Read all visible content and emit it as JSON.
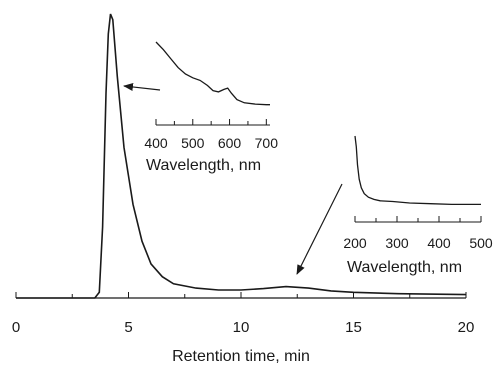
{
  "chart_data": [
    {
      "type": "line",
      "title": "",
      "xlabel": "Retention time, min",
      "ylabel": "",
      "xlim": [
        0,
        20
      ],
      "x_ticks": [
        "0",
        "5",
        "10",
        "15",
        "20"
      ],
      "x_minor_step": 2.5,
      "grid": false,
      "series": [
        {
          "points": [
            [
              0,
              0
            ],
            [
              3.5,
              0
            ],
            [
              3.7,
              0.02
            ],
            [
              3.85,
              0.25
            ],
            [
              4.0,
              0.72
            ],
            [
              4.1,
              0.93
            ],
            [
              4.2,
              1.0
            ],
            [
              4.3,
              0.98
            ],
            [
              4.5,
              0.78
            ],
            [
              4.8,
              0.53
            ],
            [
              5.2,
              0.33
            ],
            [
              5.6,
              0.2
            ],
            [
              6.0,
              0.12
            ],
            [
              6.5,
              0.075
            ],
            [
              7.0,
              0.05
            ],
            [
              8.0,
              0.035
            ],
            [
              9.0,
              0.028
            ],
            [
              10.0,
              0.028
            ],
            [
              11.0,
              0.033
            ],
            [
              12.0,
              0.04
            ],
            [
              13.0,
              0.035
            ],
            [
              14.0,
              0.025
            ],
            [
              15.0,
              0.02
            ],
            [
              17.0,
              0.015
            ],
            [
              20.0,
              0.012
            ]
          ]
        }
      ],
      "annotations": [
        {
          "text": "arrow from inset 1 to peak at ~4.2 min"
        },
        {
          "text": "arrow from inset 2 to broad peak at ~12 min"
        }
      ]
    },
    {
      "type": "line",
      "title": "",
      "xlabel": "Wavelength, nm",
      "xlim": [
        400,
        710
      ],
      "x_ticks": [
        "400",
        "500",
        "600",
        "700"
      ],
      "series": [
        {
          "points": [
            [
              400,
              1.0
            ],
            [
              420,
              0.88
            ],
            [
              440,
              0.74
            ],
            [
              460,
              0.6
            ],
            [
              480,
              0.5
            ],
            [
              500,
              0.44
            ],
            [
              520,
              0.4
            ],
            [
              540,
              0.32
            ],
            [
              555,
              0.24
            ],
            [
              570,
              0.22
            ],
            [
              585,
              0.26
            ],
            [
              595,
              0.28
            ],
            [
              605,
              0.2
            ],
            [
              620,
              0.1
            ],
            [
              640,
              0.05
            ],
            [
              670,
              0.03
            ],
            [
              700,
              0.02
            ],
            [
              710,
              0.02
            ]
          ]
        }
      ]
    },
    {
      "type": "line",
      "title": "",
      "xlabel": "Wavelength, nm",
      "xlim": [
        200,
        500
      ],
      "x_ticks": [
        "200",
        "300",
        "400",
        "500"
      ],
      "series": [
        {
          "points": [
            [
              200,
              1.0
            ],
            [
              203,
              0.85
            ],
            [
              206,
              0.6
            ],
            [
              210,
              0.4
            ],
            [
              215,
              0.28
            ],
            [
              222,
              0.2
            ],
            [
              232,
              0.15
            ],
            [
              245,
              0.12
            ],
            [
              260,
              0.1
            ],
            [
              290,
              0.09
            ],
            [
              330,
              0.07
            ],
            [
              380,
              0.06
            ],
            [
              430,
              0.05
            ],
            [
              500,
              0.05
            ]
          ]
        }
      ]
    }
  ]
}
